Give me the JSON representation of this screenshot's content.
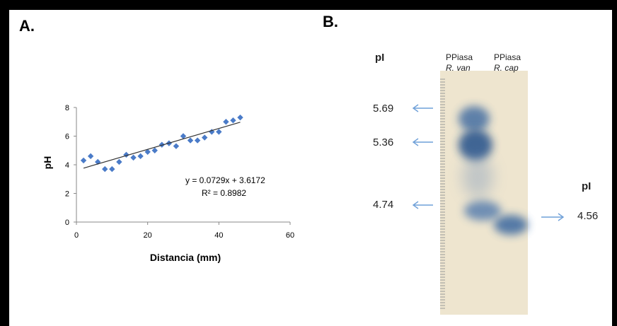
{
  "panel_a_label": "A.",
  "panel_b_label": "B.",
  "chart_data": [
    {
      "type": "scatter",
      "xlabel": "Distancia (mm)",
      "ylabel": "pH",
      "xlim": [
        0,
        60
      ],
      "ylim": [
        0,
        8
      ],
      "xticks": [
        "0",
        "20",
        "40",
        "60"
      ],
      "yticks": [
        "0",
        "2",
        "4",
        "6",
        "8"
      ],
      "grid": false,
      "marker_color": "#4a7bc8",
      "series": [
        {
          "x": [
            2,
            4,
            6,
            8,
            10,
            12,
            14,
            16,
            18,
            20,
            22,
            24,
            26,
            28,
            30,
            32,
            34,
            36,
            38,
            40,
            42,
            44,
            46
          ],
          "y": [
            4.3,
            4.6,
            4.2,
            3.7,
            3.7,
            4.2,
            4.7,
            4.5,
            4.6,
            4.9,
            5.0,
            5.4,
            5.5,
            5.3,
            6.0,
            5.7,
            5.7,
            5.9,
            6.3,
            6.3,
            7.0,
            7.1,
            7.3
          ]
        }
      ],
      "trendline": {
        "slope": 0.0729,
        "intercept": 3.6172,
        "equation": "y = 0.0729x + 3.6172",
        "r2": "R² = 0.8982"
      }
    }
  ],
  "gel": {
    "left_pi_header": "pI",
    "right_pi_header": "pI",
    "lanes": [
      {
        "line1": "PPiasa",
        "line2": "R. van"
      },
      {
        "line1": "PPiasa",
        "line2": "R. cap"
      }
    ],
    "left_markers": [
      "5.69",
      "5.36",
      "4.74"
    ],
    "right_marker": "4.56",
    "arrow_color": "#6fa0d8",
    "band_color": "#2f5f9c",
    "gel_background": "#f3ead6"
  }
}
